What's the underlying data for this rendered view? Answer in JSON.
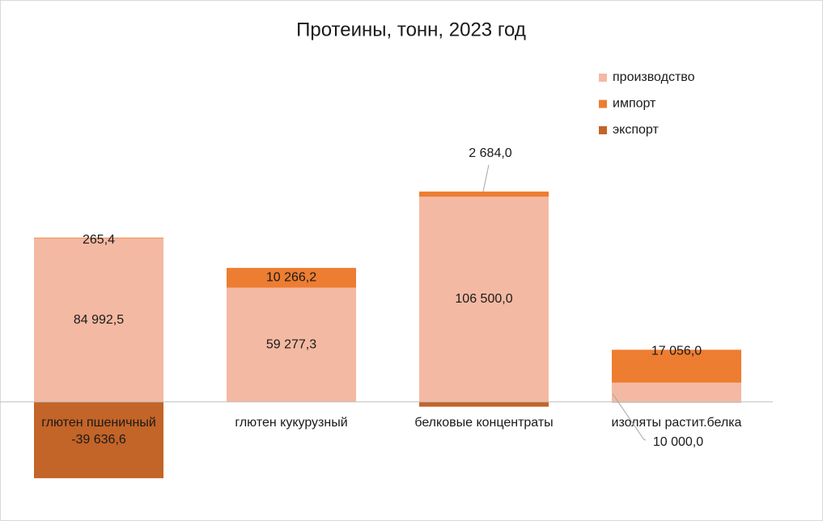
{
  "chart_data": {
    "type": "stacked-bar",
    "title": "Протеины, тонн, 2023 год",
    "categories": [
      "глютен пшеничный",
      "глютен кукурузный",
      "белковые концентраты",
      "изоляты растит.белка"
    ],
    "series": [
      {
        "name": "производство",
        "color": "#f4b9a2",
        "values": [
          84992.5,
          59277.3,
          106500.0,
          10000.0
        ],
        "value_labels": [
          "84 992,5",
          "59 277,3",
          "106 500,0",
          "10 000,0"
        ]
      },
      {
        "name": "импорт",
        "color": "#ed7d31",
        "values": [
          265.4,
          10266.2,
          2684.0,
          17056.0
        ],
        "value_labels": [
          "265,4",
          "10 266,2",
          "2 684,0",
          "17 056,0"
        ]
      },
      {
        "name": "экспорт",
        "color": "#c36428",
        "values": [
          -39636.6,
          null,
          -2500,
          -300
        ],
        "value_labels": [
          "-39 636,6",
          null,
          null,
          null
        ]
      }
    ],
    "ylim": [
      -40000,
      120000
    ],
    "legend": "top-right"
  }
}
